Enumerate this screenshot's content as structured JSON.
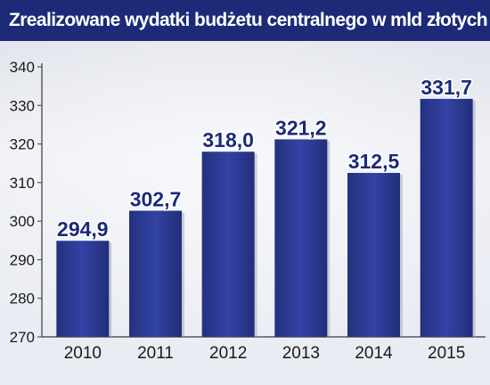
{
  "title": "Zrealizowane wydatki budżetu centralnego w mld złotych",
  "colors": {
    "bar": "#2d3c96",
    "bar_dark": "#1f2b78",
    "title_bg": "#1c2a78",
    "value_text": "#1c2a78"
  },
  "chart_data": {
    "type": "bar",
    "title": "Zrealizowane wydatki budżetu centralnego w mld złotych",
    "categories": [
      "2010",
      "2011",
      "2012",
      "2013",
      "2014",
      "2015"
    ],
    "values": [
      294.9,
      302.7,
      318.0,
      321.2,
      312.5,
      331.7
    ],
    "value_labels": [
      "294,9",
      "302,7",
      "318,0",
      "321,2",
      "312,5",
      "331,7"
    ],
    "yticks": [
      "270",
      "280",
      "290",
      "300",
      "310",
      "320",
      "330",
      "340"
    ],
    "ylim": [
      270,
      340
    ],
    "xlabel": "",
    "ylabel": "",
    "grid": false,
    "legend": "none"
  }
}
